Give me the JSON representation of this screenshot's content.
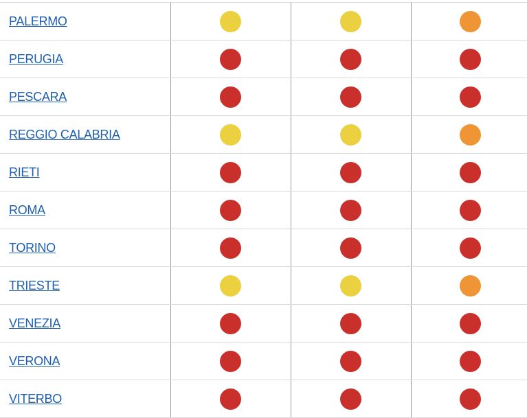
{
  "table": {
    "rows": [
      {
        "city": "PALERMO",
        "statuses": [
          "#ebd03f",
          "#ebd03f",
          "#ef9535"
        ]
      },
      {
        "city": "PERUGIA",
        "statuses": [
          "#c9302c",
          "#c9302c",
          "#c9302c"
        ]
      },
      {
        "city": "PESCARA",
        "statuses": [
          "#c9302c",
          "#c9302c",
          "#c9302c"
        ]
      },
      {
        "city": "REGGIO CALABRIA",
        "statuses": [
          "#ebd03f",
          "#ebd03f",
          "#ef9535"
        ]
      },
      {
        "city": "RIETI",
        "statuses": [
          "#c9302c",
          "#c9302c",
          "#c9302c"
        ]
      },
      {
        "city": "ROMA",
        "statuses": [
          "#c9302c",
          "#c9302c",
          "#c9302c"
        ]
      },
      {
        "city": "TORINO",
        "statuses": [
          "#c9302c",
          "#c9302c",
          "#c9302c"
        ]
      },
      {
        "city": "TRIESTE",
        "statuses": [
          "#ebd03f",
          "#ebd03f",
          "#ef9535"
        ]
      },
      {
        "city": "VENEZIA",
        "statuses": [
          "#c9302c",
          "#c9302c",
          "#c9302c"
        ]
      },
      {
        "city": "VERONA",
        "statuses": [
          "#c9302c",
          "#c9302c",
          "#c9302c"
        ]
      },
      {
        "city": "VITERBO",
        "statuses": [
          "#c9302c",
          "#c9302c",
          "#c9302c"
        ]
      }
    ]
  }
}
